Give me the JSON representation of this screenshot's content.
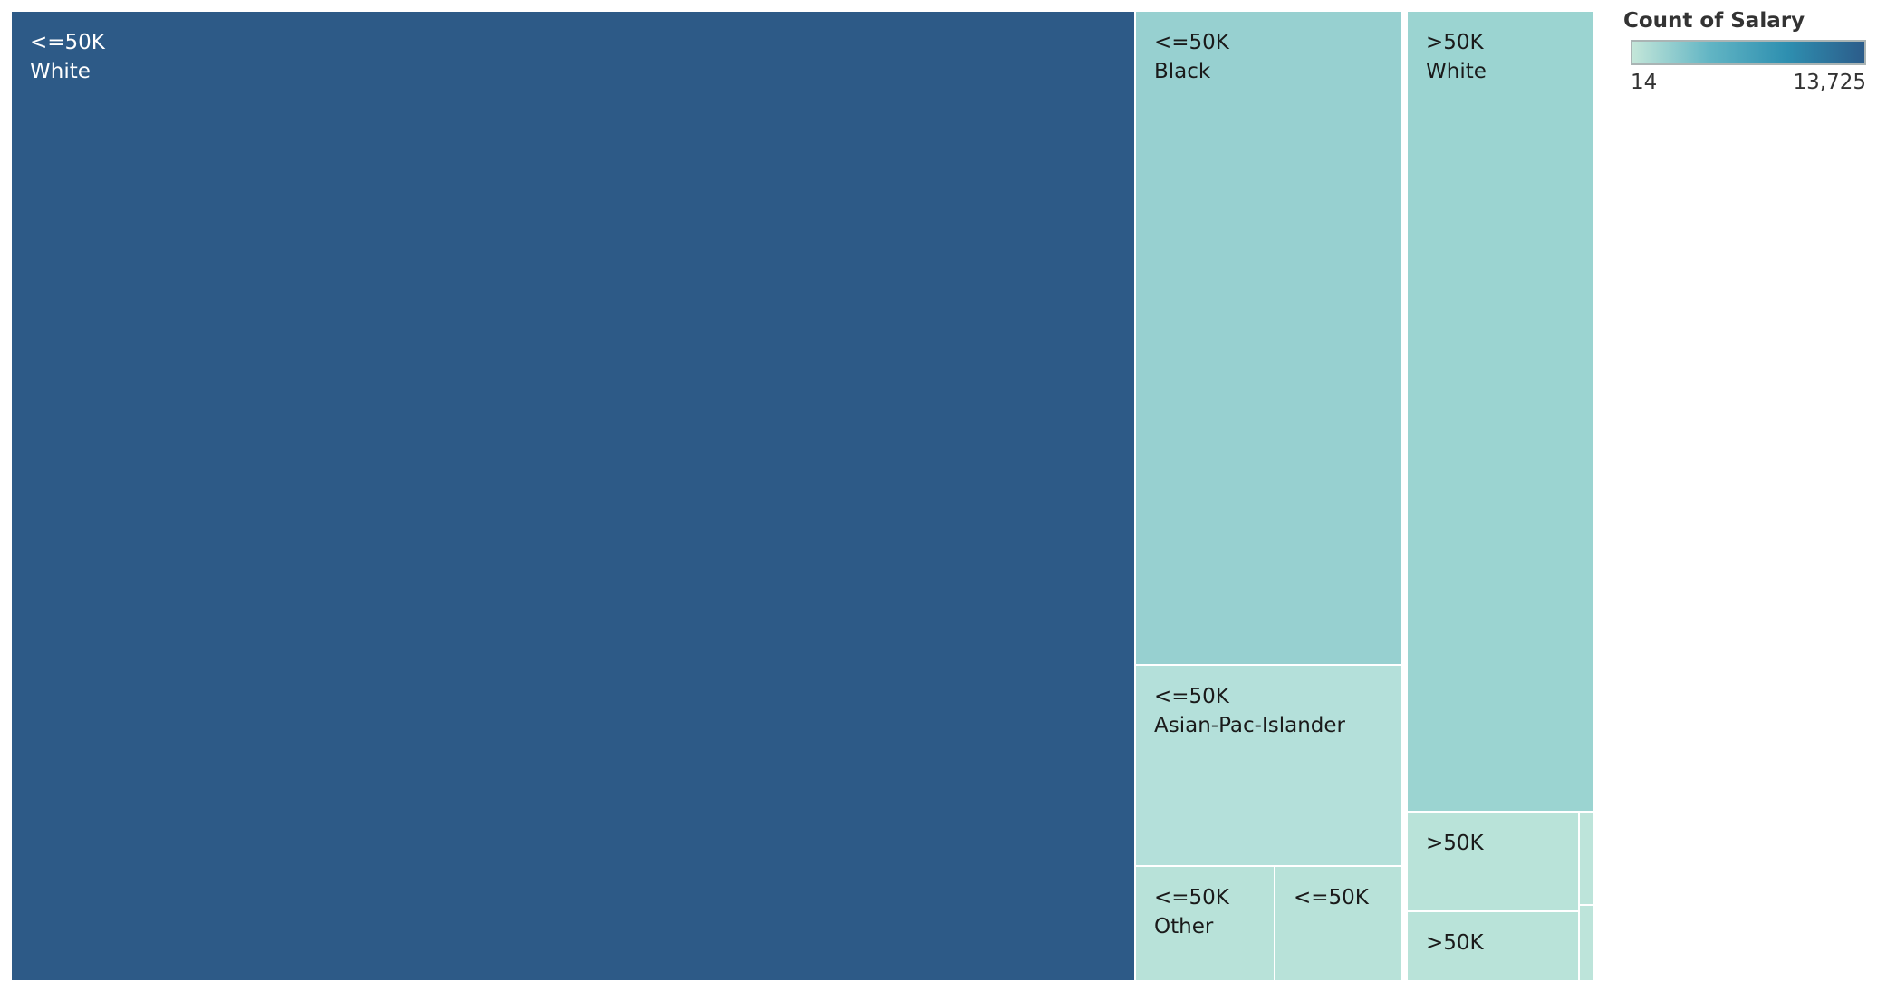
{
  "chart_data": {
    "type": "treemap",
    "size_and_color_measure": "Count of Salary",
    "cells": [
      {
        "salary": "<=50K",
        "race": "White",
        "value": 13725,
        "color": "#2d5a87",
        "text_color": "#ffffff"
      },
      {
        "salary": "<=50K",
        "race": "Black",
        "value": 2740,
        "color": "#97d0d0",
        "text_color": "#1a1a1a"
      },
      {
        "salary": "<=50K",
        "race": "Asian-Pac-Islander",
        "value": 760,
        "color": "#b4e0da",
        "text_color": "#1a1a1a"
      },
      {
        "salary": "<=50K",
        "race": "Other",
        "value": 245,
        "color": "#b8e2d9",
        "text_color": "#1a1a1a"
      },
      {
        "salary": "<=50K",
        "race": "",
        "value": 220,
        "color": "#b8e2d9",
        "text_color": "#1a1a1a"
      },
      {
        "salary": ">50K",
        "race": "White",
        "value": 2450,
        "color": "#9bd4d1",
        "text_color": "#1a1a1a"
      },
      {
        "salary": ">50K",
        "race": "",
        "value": 280,
        "color": "#b9e3d9",
        "text_color": "#1a1a1a"
      },
      {
        "salary": ">50K",
        "race": "",
        "value": 190,
        "color": "#b9e3d9",
        "text_color": "#1a1a1a"
      },
      {
        "salary": "",
        "race": "",
        "value": 18,
        "color": "#bde4da",
        "text_color": "#1a1a1a"
      },
      {
        "salary": "",
        "race": "",
        "value": 14,
        "color": "#bde4da",
        "text_color": "#1a1a1a"
      }
    ],
    "legend": {
      "title": "Count of Salary",
      "min_label": "14",
      "max_label": "13,725",
      "gradient": [
        "#c4e6d9",
        "#62b5c4",
        "#2e8fb0",
        "#2c5c8a"
      ]
    }
  }
}
